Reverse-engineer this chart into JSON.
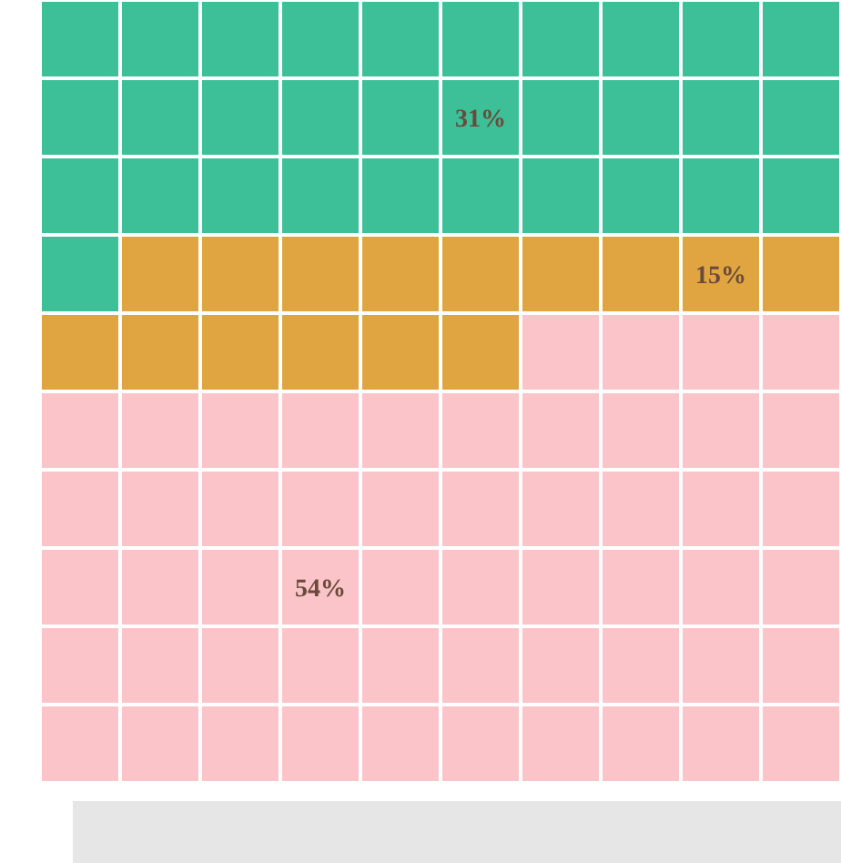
{
  "chart_data": {
    "type": "other",
    "categories": [
      null,
      null,
      null
    ],
    "values": [
      31,
      15,
      54
    ],
    "colors": [
      "#3dbf98",
      "#e0a540",
      "#fac4c9"
    ],
    "value_labels": [
      "31%",
      "15%",
      "54%"
    ]
  }
}
